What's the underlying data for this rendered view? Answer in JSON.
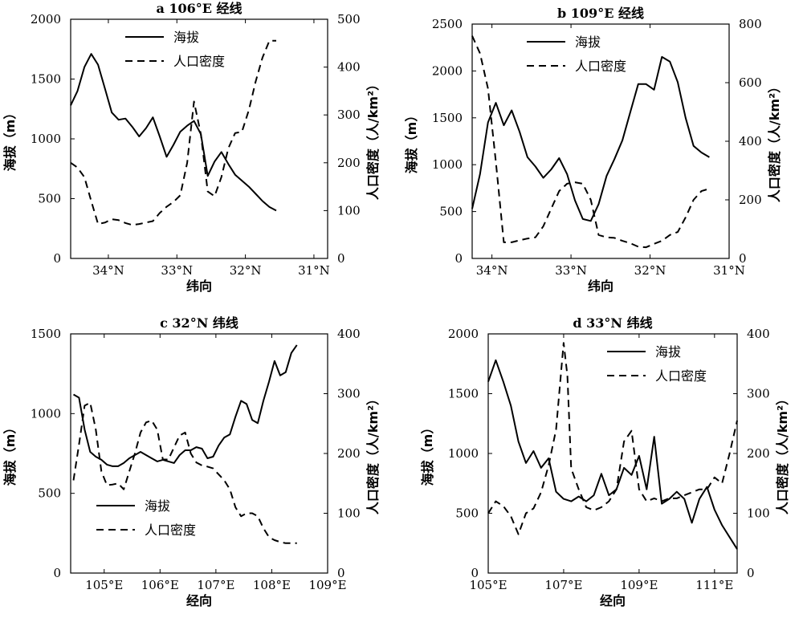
{
  "figure": {
    "panels": [
      {
        "chart_data": {
          "type": "line",
          "title": "a 106°E 经线",
          "xlabel": "纬向",
          "ylabel": "海拔（m）",
          "y2label": "人口密度（人/km²）",
          "x_reversed": true,
          "xlim": [
            34.55,
            30.8
          ],
          "ylim": [
            0,
            2000
          ],
          "y2lim": [
            0,
            500
          ],
          "xticks": [
            34,
            33,
            32,
            31
          ],
          "xtick_labels": [
            "34°N",
            "33°N",
            "32°N",
            "31°N"
          ],
          "yticks": [
            0,
            500,
            1000,
            1500,
            2000
          ],
          "y2ticks": [
            0,
            100,
            200,
            300,
            400,
            500
          ],
          "legend_position": "top-center",
          "series": [
            {
              "name": "海拔",
              "axis": "left",
              "style": "solid",
              "x": [
                34.55,
                34.45,
                34.35,
                34.25,
                34.15,
                34.05,
                33.95,
                33.85,
                33.75,
                33.65,
                33.55,
                33.45,
                33.35,
                33.25,
                33.15,
                33.05,
                32.95,
                32.85,
                32.75,
                32.65,
                32.55,
                32.45,
                32.35,
                32.25,
                32.15,
                32.05,
                31.95,
                31.85,
                31.75,
                31.65,
                31.55
              ],
              "values": [
                1280,
                1400,
                1600,
                1710,
                1620,
                1420,
                1220,
                1160,
                1170,
                1100,
                1020,
                1090,
                1180,
                1020,
                850,
                950,
                1060,
                1110,
                1150,
                1040,
                690,
                810,
                890,
                790,
                700,
                650,
                600,
                540,
                480,
                430,
                400
              ]
            },
            {
              "name": "人口密度",
              "axis": "right",
              "style": "dashed",
              "x": [
                34.55,
                34.45,
                34.35,
                34.25,
                34.15,
                34.05,
                33.95,
                33.85,
                33.75,
                33.65,
                33.55,
                33.45,
                33.35,
                33.25,
                33.15,
                33.05,
                32.95,
                32.85,
                32.75,
                32.65,
                32.55,
                32.45,
                32.35,
                32.25,
                32.15,
                32.05,
                31.95,
                31.85,
                31.75,
                31.65,
                31.55
              ],
              "values": [
                200,
                190,
                170,
                120,
                72,
                75,
                82,
                80,
                74,
                70,
                72,
                75,
                78,
                95,
                108,
                118,
                132,
                200,
                328,
                260,
                140,
                130,
                170,
                230,
                262,
                265,
                310,
                370,
                420,
                455,
                455
              ]
            }
          ]
        }
      },
      {
        "chart_data": {
          "type": "line",
          "title": "b 109°E 经线",
          "xlabel": "纬向",
          "ylabel": "海拔（m）",
          "y2label": "人口密度（人/km²）",
          "x_reversed": true,
          "xlim": [
            34.25,
            31.0
          ],
          "ylim": [
            0,
            2500
          ],
          "y2lim": [
            0,
            800
          ],
          "xticks": [
            34,
            33,
            32,
            31
          ],
          "xtick_labels": [
            "34°N",
            "33°N",
            "32°N",
            "31°N"
          ],
          "yticks": [
            0,
            500,
            1000,
            1500,
            2000,
            2500
          ],
          "y2ticks": [
            0,
            200,
            400,
            600,
            800
          ],
          "legend_position": "top-center",
          "series": [
            {
              "name": "海拔",
              "axis": "left",
              "style": "solid",
              "x": [
                34.25,
                34.15,
                34.05,
                33.95,
                33.85,
                33.75,
                33.65,
                33.55,
                33.45,
                33.35,
                33.25,
                33.15,
                33.05,
                32.95,
                32.85,
                32.75,
                32.65,
                32.55,
                32.45,
                32.35,
                32.25,
                32.15,
                32.05,
                31.95,
                31.85,
                31.75,
                31.65,
                31.55,
                31.45,
                31.35,
                31.25
              ],
              "values": [
                530,
                900,
                1450,
                1660,
                1420,
                1580,
                1350,
                1080,
                980,
                860,
                950,
                1070,
                900,
                620,
                420,
                400,
                580,
                880,
                1060,
                1260,
                1560,
                1860,
                1860,
                1800,
                2150,
                2100,
                1880,
                1500,
                1200,
                1130,
                1080
              ]
            },
            {
              "name": "人口密度",
              "axis": "right",
              "style": "dashed",
              "x": [
                34.25,
                34.15,
                34.05,
                33.95,
                33.85,
                33.75,
                33.65,
                33.55,
                33.45,
                33.35,
                33.25,
                33.15,
                33.05,
                32.95,
                32.85,
                32.75,
                32.65,
                32.55,
                32.45,
                32.35,
                32.25,
                32.15,
                32.05,
                31.95,
                31.85,
                31.75,
                31.65,
                31.55,
                31.45,
                31.35,
                31.25
              ],
              "values": [
                760,
                700,
                580,
                330,
                55,
                55,
                62,
                68,
                72,
                110,
                170,
                230,
                255,
                260,
                255,
                200,
                80,
                72,
                70,
                60,
                52,
                40,
                38,
                50,
                60,
                80,
                90,
                140,
                200,
                230,
                238
              ]
            }
          ]
        }
      },
      {
        "chart_data": {
          "type": "line",
          "title": "c 32°N 纬线",
          "xlabel": "经向",
          "ylabel": "海拔（m）",
          "y2label": "人口密度（人/km²）",
          "x_reversed": false,
          "xlim": [
            104.4,
            109.0
          ],
          "ylim": [
            0,
            1500
          ],
          "y2lim": [
            0,
            400
          ],
          "xticks": [
            105,
            106,
            107,
            108,
            109
          ],
          "xtick_labels": [
            "105°E",
            "106°E",
            "107°E",
            "108°E",
            "109°E"
          ],
          "yticks": [
            0,
            500,
            1000,
            1500
          ],
          "y2ticks": [
            0,
            100,
            200,
            300,
            400
          ],
          "legend_position": "bottom-left",
          "series": [
            {
              "name": "海拔",
              "axis": "left",
              "style": "solid",
              "x": [
                104.45,
                104.55,
                104.65,
                104.75,
                104.85,
                104.95,
                105.05,
                105.15,
                105.25,
                105.35,
                105.45,
                105.55,
                105.65,
                105.75,
                105.85,
                105.95,
                106.05,
                106.15,
                106.25,
                106.35,
                106.45,
                106.55,
                106.65,
                106.75,
                106.85,
                106.95,
                107.05,
                107.15,
                107.25,
                107.35,
                107.45,
                107.55,
                107.65,
                107.75,
                107.85,
                107.95,
                108.05,
                108.15,
                108.25,
                108.35,
                108.45
              ],
              "values": [
                1120,
                1100,
                900,
                760,
                730,
                710,
                680,
                670,
                670,
                690,
                720,
                740,
                760,
                740,
                720,
                700,
                710,
                700,
                690,
                740,
                770,
                770,
                790,
                780,
                720,
                730,
                800,
                850,
                870,
                980,
                1080,
                1060,
                960,
                940,
                1080,
                1200,
                1330,
                1240,
                1260,
                1380,
                1430
              ]
            },
            {
              "name": "人口密度",
              "axis": "right",
              "style": "dashed",
              "x": [
                104.45,
                104.55,
                104.65,
                104.75,
                104.85,
                104.95,
                105.05,
                105.15,
                105.25,
                105.35,
                105.45,
                105.55,
                105.65,
                105.75,
                105.85,
                105.95,
                106.05,
                106.15,
                106.25,
                106.35,
                106.45,
                106.55,
                106.65,
                106.75,
                106.85,
                106.95,
                107.05,
                107.15,
                107.25,
                107.35,
                107.45,
                107.55,
                107.65,
                107.75,
                107.85,
                107.95,
                108.05,
                108.15,
                108.25,
                108.35,
                108.45
              ],
              "values": [
                155,
                215,
                280,
                285,
                240,
                170,
                147,
                148,
                150,
                140,
                170,
                200,
                235,
                252,
                255,
                240,
                190,
                190,
                210,
                230,
                235,
                200,
                185,
                180,
                178,
                175,
                165,
                155,
                140,
                110,
                95,
                100,
                100,
                95,
                75,
                60,
                55,
                52,
                50,
                50,
                50
              ]
            }
          ]
        }
      },
      {
        "chart_data": {
          "type": "line",
          "title": "d 33°N 纬线",
          "xlabel": "经向",
          "ylabel": "海拔（m）",
          "y2label": "人口密度（人/km²）",
          "x_reversed": false,
          "xlim": [
            105.0,
            111.6
          ],
          "ylim": [
            0,
            2000
          ],
          "y2lim": [
            0,
            400
          ],
          "xticks": [
            105,
            107,
            109,
            111
          ],
          "xtick_labels": [
            "105°E",
            "107°E",
            "109°E",
            "111°E"
          ],
          "yticks": [
            0,
            500,
            1000,
            1500,
            2000
          ],
          "y2ticks": [
            0,
            100,
            200,
            300,
            400
          ],
          "legend_position": "top-right",
          "series": [
            {
              "name": "海拔",
              "axis": "left",
              "style": "solid",
              "x": [
                105.0,
                105.2,
                105.4,
                105.6,
                105.8,
                106.0,
                106.2,
                106.4,
                106.6,
                106.8,
                107.0,
                107.2,
                107.4,
                107.6,
                107.8,
                108.0,
                108.2,
                108.4,
                108.6,
                108.8,
                109.0,
                109.2,
                109.4,
                109.6,
                109.8,
                110.0,
                110.2,
                110.4,
                110.6,
                110.8,
                111.0,
                111.2,
                111.4,
                111.6
              ],
              "values": [
                1600,
                1780,
                1600,
                1400,
                1100,
                920,
                1020,
                880,
                960,
                680,
                620,
                600,
                640,
                600,
                650,
                830,
                650,
                700,
                880,
                820,
                980,
                700,
                1140,
                580,
                620,
                680,
                620,
                420,
                620,
                720,
                530,
                400,
                300,
                200
              ]
            },
            {
              "name": "人口密度",
              "axis": "right",
              "style": "dashed",
              "x": [
                105.0,
                105.2,
                105.4,
                105.6,
                105.8,
                106.0,
                106.2,
                106.4,
                106.6,
                106.8,
                107.0,
                107.1,
                107.2,
                107.4,
                107.6,
                107.8,
                108.0,
                108.2,
                108.4,
                108.6,
                108.8,
                109.0,
                109.2,
                109.4,
                109.6,
                109.8,
                110.0,
                110.2,
                110.4,
                110.6,
                110.8,
                111.0,
                111.2,
                111.4,
                111.6
              ],
              "values": [
                100,
                120,
                112,
                95,
                65,
                100,
                108,
                135,
                180,
                240,
                385,
                330,
                175,
                140,
                110,
                105,
                110,
                120,
                140,
                220,
                238,
                140,
                120,
                125,
                120,
                125,
                125,
                130,
                135,
                140,
                140,
                160,
                150,
                200,
                255
              ]
            }
          ]
        }
      }
    ]
  }
}
